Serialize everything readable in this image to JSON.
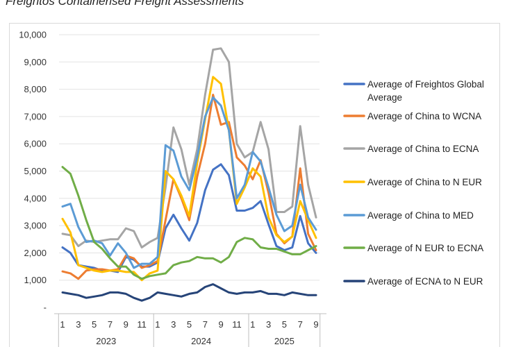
{
  "page_title": "Freightos Containerised Freight Assessments",
  "chart_data": {
    "type": "line",
    "title": "",
    "xlabel": "",
    "ylabel": "",
    "ylim": [
      0,
      10000
    ],
    "yticks": [
      0,
      1000,
      2000,
      3000,
      4000,
      5000,
      6000,
      7000,
      8000,
      9000,
      10000
    ],
    "ytick_labels": [
      "-",
      "1,000",
      "2,000",
      "3,000",
      "4,000",
      "5,000",
      "6,000",
      "7,000",
      "8,000",
      "9,000",
      "10,000"
    ],
    "x_count": 33,
    "month_ticks": [
      {
        "index": 0,
        "label": "1"
      },
      {
        "index": 2,
        "label": "3"
      },
      {
        "index": 4,
        "label": "5"
      },
      {
        "index": 6,
        "label": "7"
      },
      {
        "index": 8,
        "label": "9"
      },
      {
        "index": 10,
        "label": "11"
      },
      {
        "index": 12,
        "label": "1"
      },
      {
        "index": 14,
        "label": "3"
      },
      {
        "index": 16,
        "label": "5"
      },
      {
        "index": 18,
        "label": "7"
      },
      {
        "index": 20,
        "label": "9"
      },
      {
        "index": 22,
        "label": "11"
      },
      {
        "index": 24,
        "label": "1"
      },
      {
        "index": 26,
        "label": "3"
      },
      {
        "index": 28,
        "label": "5"
      },
      {
        "index": 30,
        "label": "7"
      },
      {
        "index": 32,
        "label": "9"
      }
    ],
    "year_groups": [
      {
        "label": "2023",
        "start": 0,
        "end": 11
      },
      {
        "label": "2024",
        "start": 12,
        "end": 23
      },
      {
        "label": "2025",
        "start": 24,
        "end": 32
      }
    ],
    "legend_position": "right",
    "grid": true,
    "series": [
      {
        "name": "Average of Freightos Global Average",
        "color": "#4472c4",
        "values": [
          2200,
          2000,
          1550,
          1500,
          1450,
          1350,
          1350,
          1300,
          1850,
          1750,
          1500,
          1500,
          1650,
          2900,
          3400,
          2900,
          2450,
          3100,
          4300,
          5050,
          5250,
          4850,
          3550,
          3550,
          3650,
          3900,
          3050,
          2250,
          2100,
          2200,
          3350,
          2350,
          2000
        ]
      },
      {
        "name": "Average of China to WCNA",
        "color": "#ed7d31",
        "values": [
          1320,
          1250,
          1050,
          1350,
          1400,
          1400,
          1350,
          1400,
          1900,
          1800,
          1450,
          1550,
          1700,
          3200,
          4700,
          4000,
          3200,
          4800,
          6000,
          7800,
          6700,
          6800,
          5500,
          5200,
          4700,
          5400,
          4200,
          2700,
          2350,
          2600,
          5100,
          2700,
          2100
        ]
      },
      {
        "name": "Average of China to ECNA",
        "color": "#a5a5a5",
        "values": [
          2700,
          2650,
          2250,
          2450,
          2400,
          2450,
          2500,
          2500,
          2900,
          2800,
          2200,
          2400,
          2550,
          4400,
          6600,
          5800,
          4500,
          5800,
          7800,
          9450,
          9500,
          9000,
          6000,
          5500,
          5700,
          6800,
          5800,
          3500,
          3500,
          3700,
          6650,
          4500,
          3300
        ]
      },
      {
        "name": "Average of China to N EUR",
        "color": "#ffc000",
        "values": [
          3250,
          2750,
          1550,
          1450,
          1350,
          1300,
          1350,
          1350,
          1300,
          1300,
          1000,
          1250,
          1350,
          5000,
          4700,
          4100,
          3350,
          5300,
          6900,
          8450,
          8200,
          6500,
          3800,
          4400,
          5100,
          4800,
          3300,
          2650,
          2400,
          2600,
          3900,
          3200,
          2550
        ]
      },
      {
        "name": "Average of China to MED",
        "color": "#5b9bd5",
        "values": [
          3700,
          3800,
          2950,
          2400,
          2450,
          2350,
          1900,
          2350,
          2000,
          1450,
          1600,
          1600,
          1850,
          5950,
          5750,
          4800,
          4300,
          5500,
          7000,
          7700,
          7400,
          6500,
          4000,
          4500,
          5700,
          5350,
          4400,
          3400,
          2800,
          3000,
          4500,
          3300,
          2850
        ]
      },
      {
        "name": "Average of N EUR to ECNA",
        "color": "#70ad47",
        "values": [
          5150,
          4900,
          4100,
          3200,
          2400,
          2150,
          1800,
          1500,
          1500,
          1200,
          1050,
          1150,
          1200,
          1250,
          1550,
          1650,
          1700,
          1850,
          1800,
          1800,
          1650,
          1850,
          2400,
          2550,
          2500,
          2200,
          2150,
          2150,
          2050,
          1950,
          1950,
          2100,
          2250
        ]
      },
      {
        "name": "Average of ECNA to N EUR",
        "color": "#264478",
        "values": [
          550,
          500,
          450,
          350,
          400,
          450,
          550,
          550,
          500,
          350,
          250,
          350,
          550,
          500,
          450,
          400,
          500,
          550,
          750,
          850,
          700,
          550,
          500,
          550,
          550,
          600,
          500,
          500,
          450,
          550,
          500,
          450,
          450
        ]
      }
    ]
  }
}
